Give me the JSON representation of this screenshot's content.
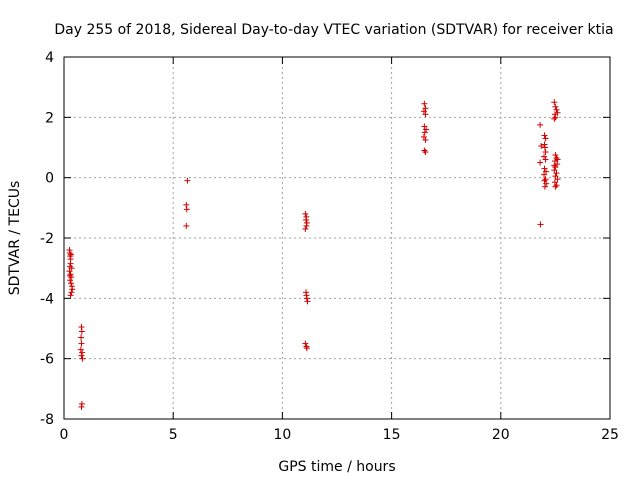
{
  "chart_data": {
    "type": "scatter",
    "title": "Day 255 of 2018, Sidereal Day-to-day VTEC variation (SDTVAR) for receiver ktia",
    "xlabel": "GPS time / hours",
    "ylabel": "SDTVAR / TECUs",
    "xlim": [
      0,
      25
    ],
    "ylim": [
      -8,
      4
    ],
    "xticks": [
      0,
      5,
      10,
      15,
      20,
      25
    ],
    "yticks": [
      -8,
      -6,
      -4,
      -2,
      0,
      2,
      4
    ],
    "grid": true,
    "marker": "+",
    "color": "#d00000",
    "series": [
      {
        "name": "SDTVAR",
        "points": [
          [
            0.25,
            -2.4
          ],
          [
            0.27,
            -2.5
          ],
          [
            0.28,
            -2.6
          ],
          [
            0.3,
            -2.7
          ],
          [
            0.32,
            -2.55
          ],
          [
            0.3,
            -2.85
          ],
          [
            0.27,
            -2.95
          ],
          [
            0.25,
            -3.1
          ],
          [
            0.3,
            -3.2
          ],
          [
            0.33,
            -3.3
          ],
          [
            0.35,
            -3.0
          ],
          [
            0.28,
            -3.4
          ],
          [
            0.32,
            -3.5
          ],
          [
            0.36,
            -3.6
          ],
          [
            0.38,
            -3.7
          ],
          [
            0.34,
            -3.8
          ],
          [
            0.3,
            -3.9
          ],
          [
            0.27,
            -3.25
          ],
          [
            0.8,
            -4.95
          ],
          [
            0.82,
            -5.1
          ],
          [
            0.78,
            -5.3
          ],
          [
            0.8,
            -5.5
          ],
          [
            0.77,
            -5.7
          ],
          [
            0.83,
            -5.8
          ],
          [
            0.8,
            -5.9
          ],
          [
            0.85,
            -6.0
          ],
          [
            0.82,
            -7.5
          ],
          [
            0.8,
            -7.6
          ],
          [
            5.65,
            -0.1
          ],
          [
            5.6,
            -0.9
          ],
          [
            5.62,
            -1.05
          ],
          [
            5.6,
            -1.6
          ],
          [
            11.05,
            -1.2
          ],
          [
            11.1,
            -1.3
          ],
          [
            11.08,
            -1.4
          ],
          [
            11.12,
            -1.5
          ],
          [
            11.1,
            -1.6
          ],
          [
            11.05,
            -1.7
          ],
          [
            11.08,
            -3.8
          ],
          [
            11.1,
            -3.9
          ],
          [
            11.12,
            -4.0
          ],
          [
            11.15,
            -4.1
          ],
          [
            11.05,
            -5.5
          ],
          [
            11.1,
            -5.6
          ],
          [
            11.12,
            -5.65
          ],
          [
            16.5,
            2.45
          ],
          [
            16.55,
            2.3
          ],
          [
            16.48,
            2.2
          ],
          [
            16.55,
            2.1
          ],
          [
            16.5,
            1.7
          ],
          [
            16.58,
            1.6
          ],
          [
            16.52,
            1.5
          ],
          [
            16.48,
            1.35
          ],
          [
            16.55,
            1.25
          ],
          [
            16.5,
            0.9
          ],
          [
            16.55,
            0.85
          ],
          [
            21.8,
            1.75
          ],
          [
            21.85,
            1.05
          ],
          [
            21.8,
            0.5
          ],
          [
            21.82,
            -1.55
          ],
          [
            22.0,
            1.4
          ],
          [
            22.05,
            1.3
          ],
          [
            22.0,
            1.1
          ],
          [
            22.02,
            1.0
          ],
          [
            22.05,
            0.85
          ],
          [
            21.98,
            0.7
          ],
          [
            22.05,
            0.6
          ],
          [
            22.0,
            0.3
          ],
          [
            22.07,
            0.2
          ],
          [
            21.98,
            0.1
          ],
          [
            22.05,
            -0.05
          ],
          [
            22.0,
            -0.1
          ],
          [
            22.08,
            -0.2
          ],
          [
            22.02,
            -0.3
          ],
          [
            22.45,
            2.5
          ],
          [
            22.5,
            2.35
          ],
          [
            22.55,
            2.25
          ],
          [
            22.48,
            2.1
          ],
          [
            22.5,
            2.0
          ],
          [
            22.6,
            2.15
          ],
          [
            22.45,
            1.95
          ],
          [
            22.5,
            0.75
          ],
          [
            22.55,
            0.65
          ],
          [
            22.48,
            0.55
          ],
          [
            22.58,
            0.45
          ],
          [
            22.5,
            0.35
          ],
          [
            22.45,
            0.25
          ],
          [
            22.55,
            0.15
          ],
          [
            22.5,
            0.05
          ],
          [
            22.6,
            -0.05
          ],
          [
            22.48,
            -0.15
          ],
          [
            22.55,
            -0.25
          ],
          [
            22.5,
            -0.3
          ],
          [
            22.6,
            0.6
          ],
          [
            22.45,
            0.4
          ]
        ]
      }
    ]
  }
}
